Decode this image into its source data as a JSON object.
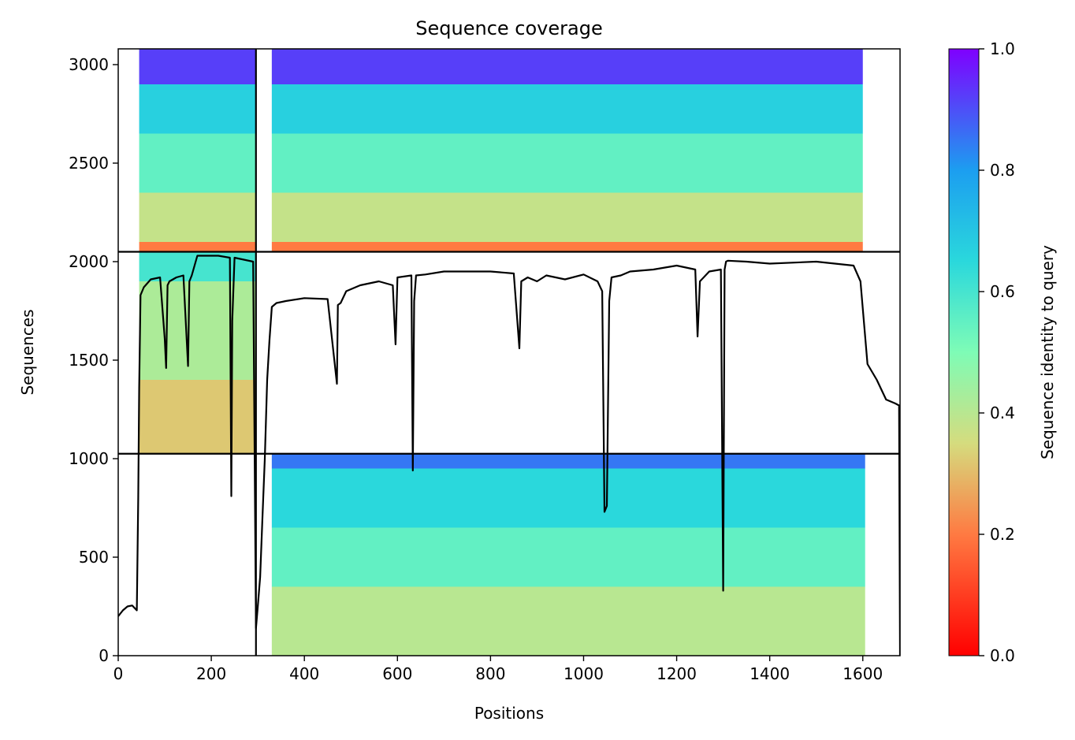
{
  "chart_data": {
    "type": "heatmap",
    "title": "Sequence coverage",
    "xlabel": "Positions",
    "ylabel": "Sequences",
    "xlim": [
      0,
      1680
    ],
    "ylim": [
      0,
      3080
    ],
    "xticks": [
      0,
      200,
      400,
      600,
      800,
      1000,
      1200,
      1400,
      1600
    ],
    "yticks": [
      0,
      500,
      1000,
      1500,
      2000,
      2500,
      3000
    ],
    "colorbar": {
      "label": "Sequence identity to query",
      "range": [
        0,
        1
      ],
      "ticks": [
        "0.0",
        "0.2",
        "0.4",
        "0.6",
        "0.8",
        "1.0"
      ],
      "colormap": "rainbow_r"
    },
    "chain_boundaries_x": [
      296
    ],
    "chain_boundaries_y": [
      1025,
      2050
    ],
    "blocks": [
      {
        "name": "chain1",
        "x_range": [
          0,
          296
        ],
        "y_range": [
          1025,
          2050
        ],
        "coverage_start": 45
      },
      {
        "name": "chain2-lower",
        "x_range": [
          296,
          1680
        ],
        "y_range": [
          0,
          1025
        ],
        "coverage_start": 330,
        "coverage_end": 1605
      },
      {
        "name": "chain2-upper",
        "x_range": [
          296,
          1680
        ],
        "y_range": [
          2050,
          3080
        ],
        "coverage_start": 330,
        "coverage_end": 1600
      },
      {
        "name": "chain1-upper",
        "x_range": [
          0,
          296
        ],
        "y_range": [
          2050,
          3080
        ],
        "coverage_start": 45
      }
    ],
    "identity_bands": [
      {
        "block": "chain1",
        "y": [
          1025,
          1400
        ],
        "identity": 0.32
      },
      {
        "block": "chain1",
        "y": [
          1400,
          1900
        ],
        "identity": 0.42
      },
      {
        "block": "chain1",
        "y": [
          1900,
          2050
        ],
        "identity": 0.6
      },
      {
        "block": "chain2-lower",
        "y": [
          0,
          350
        ],
        "identity": 0.4
      },
      {
        "block": "chain2-lower",
        "y": [
          350,
          650
        ],
        "identity": 0.55
      },
      {
        "block": "chain2-lower",
        "y": [
          650,
          950
        ],
        "identity": 0.65
      },
      {
        "block": "chain2-lower",
        "y": [
          950,
          1025
        ],
        "identity": 0.85
      },
      {
        "block": "chain2-upper",
        "y": [
          2050,
          2100
        ],
        "identity": 0.2
      },
      {
        "block": "chain2-upper",
        "y": [
          2100,
          2350
        ],
        "identity": 0.38
      },
      {
        "block": "chain2-upper",
        "y": [
          2350,
          2650
        ],
        "identity": 0.55
      },
      {
        "block": "chain2-upper",
        "y": [
          2650,
          2900
        ],
        "identity": 0.67
      },
      {
        "block": "chain2-upper",
        "y": [
          2900,
          3080
        ],
        "identity": 0.92
      }
    ],
    "coverage_line": {
      "name": "coverage",
      "x": [
        0,
        10,
        20,
        30,
        40,
        43,
        45,
        48,
        55,
        70,
        90,
        100,
        103,
        106,
        110,
        125,
        140,
        150,
        153,
        158,
        170,
        190,
        215,
        240,
        243,
        245,
        250,
        270,
        290,
        296,
        300,
        305,
        310,
        315,
        320,
        325,
        330,
        335,
        340,
        360,
        400,
        450,
        470,
        472,
        478,
        490,
        520,
        560,
        590,
        596,
        600,
        630,
        633,
        636,
        640,
        660,
        700,
        800,
        850,
        862,
        866,
        880,
        900,
        920,
        960,
        1000,
        1030,
        1040,
        1045,
        1050,
        1055,
        1060,
        1080,
        1100,
        1150,
        1200,
        1240,
        1245,
        1250,
        1270,
        1295,
        1300,
        1303,
        1306,
        1310,
        1350,
        1400,
        1500,
        1580,
        1595,
        1610,
        1630,
        1650,
        1670,
        1678,
        1680
      ],
      "y": [
        200,
        230,
        250,
        255,
        230,
        800,
        1360,
        1830,
        1870,
        1910,
        1920,
        1610,
        1460,
        1880,
        1900,
        1920,
        1930,
        1470,
        1900,
        1930,
        2030,
        2030,
        2030,
        2020,
        810,
        1700,
        2020,
        2010,
        2000,
        140,
        250,
        400,
        700,
        1000,
        1400,
        1600,
        1770,
        1780,
        1790,
        1800,
        1815,
        1810,
        1380,
        1780,
        1790,
        1850,
        1880,
        1900,
        1880,
        1580,
        1920,
        1930,
        940,
        1800,
        1930,
        1935,
        1950,
        1950,
        1940,
        1560,
        1900,
        1920,
        1900,
        1930,
        1910,
        1935,
        1900,
        1850,
        730,
        760,
        1800,
        1920,
        1930,
        1950,
        1960,
        1980,
        1960,
        1620,
        1900,
        1950,
        1960,
        330,
        1960,
        2000,
        2005,
        2000,
        1990,
        2000,
        1980,
        1900,
        1480,
        1400,
        1300,
        1280,
        1270,
        0
      ]
    }
  }
}
